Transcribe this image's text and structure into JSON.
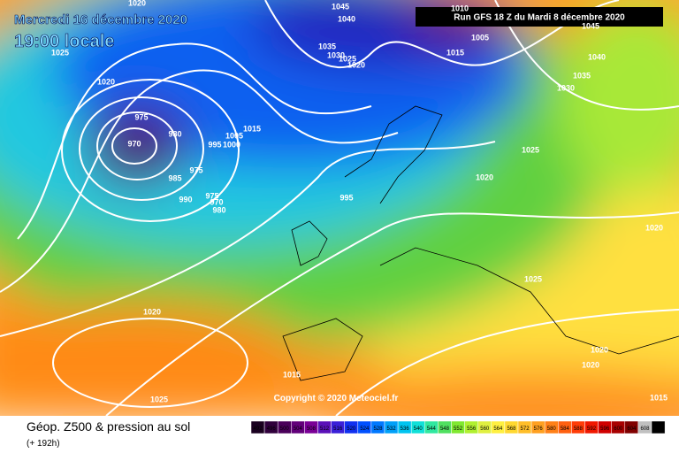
{
  "header": {
    "date": "Mercredi 16 décembre 2020",
    "time": "19:00 locale",
    "run": "Run GFS 18 Z du Mardi 8 décembre 2020"
  },
  "copyright": "Copyright © 2020 Meteociel.fr",
  "footer": {
    "title": "Géop. Z500 & pression au sol",
    "lead": "(+ 192h)"
  },
  "isobar_labels": [
    1020,
    1045,
    1040,
    1010,
    1045,
    1025,
    1035,
    1030,
    1025,
    1020,
    1015,
    1005,
    1040,
    1035,
    1030,
    1020,
    975,
    980,
    970,
    1015,
    1005,
    995,
    1000,
    1025,
    975,
    985,
    1020,
    990,
    975,
    970,
    980,
    995,
    1020,
    1025,
    1020,
    1020,
    1020,
    1015,
    1025,
    1015
  ],
  "colorbar": {
    "values": [
      492,
      496,
      500,
      504,
      508,
      512,
      516,
      520,
      524,
      528,
      532,
      536,
      540,
      544,
      548,
      552,
      556,
      560,
      564,
      568,
      572,
      576,
      580,
      584,
      588,
      592,
      596,
      600,
      604,
      608,
      612
    ],
    "colors": [
      "#1a0020",
      "#30003c",
      "#4a005a",
      "#62007a",
      "#7a0096",
      "#5a10b8",
      "#3a20d8",
      "#1030f0",
      "#0050ff",
      "#0078ff",
      "#00a0f8",
      "#00c4f0",
      "#10e0d8",
      "#30e8a0",
      "#50e060",
      "#80e830",
      "#b0f030",
      "#e0f040",
      "#fff040",
      "#ffd830",
      "#ffbe28",
      "#ffa020",
      "#ff8018",
      "#ff6010",
      "#ff3c08",
      "#f01800",
      "#d00000",
      "#a80000",
      "#800000",
      "#c0c0c0",
      "#000000"
    ]
  }
}
